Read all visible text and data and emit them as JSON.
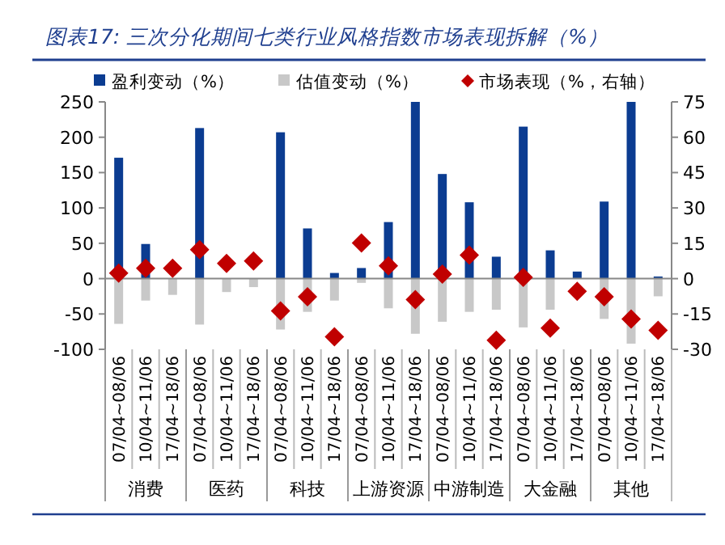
{
  "chart_data": {
    "type": "bar",
    "title": "图表17: 三次分化期间七类行业风格指数市场表现拆解（%）",
    "categories": [
      "07/04~08/06",
      "10/04~11/06",
      "17/04~18/06",
      "07/04~08/06",
      "10/04~11/06",
      "17/04~18/06",
      "07/04~08/06",
      "10/04~11/06",
      "17/04~18/06",
      "07/04~08/06",
      "10/04~11/06",
      "17/04~18/06",
      "07/04~08/06",
      "10/04~11/06",
      "17/04~18/06",
      "07/04~08/06",
      "10/04~11/06",
      "17/04~18/06",
      "07/04~08/06",
      "10/04~11/06",
      "17/04~18/06"
    ],
    "annotations": [
      "消费",
      "医药",
      "科技",
      "上游资源",
      "中游制造",
      "大金融",
      "其他"
    ],
    "stacked": true,
    "series": [
      {
        "name": "盈利变动（%）",
        "color": "#0b3c91",
        "values": [
          171,
          49,
          null,
          213,
          null,
          null,
          207,
          71,
          8,
          15,
          80,
          250,
          148,
          108,
          31,
          215,
          40,
          10,
          109,
          250,
          3
        ]
      },
      {
        "name": "估值变动（%）",
        "color": "#c8c8c8",
        "values": [
          -64,
          -31,
          -23,
          -65,
          -19,
          -12,
          -72,
          -47,
          -31,
          -6,
          -42,
          -78,
          -61,
          -47,
          -44,
          -69,
          -44,
          null,
          -57,
          -92,
          -25
        ]
      },
      {
        "name": "市场表现（%，右轴）",
        "type": "scatter",
        "axis": "y2",
        "marker": "diamond",
        "color": "#c00000",
        "values": [
          2.3,
          4.4,
          4.4,
          12.3,
          6.5,
          7.5,
          -13.7,
          -7.7,
          -24.7,
          15.1,
          5.4,
          -8.9,
          1.9,
          10.0,
          -26.1,
          0.5,
          -21.0,
          -5.4,
          -7.7,
          -17.1,
          -21.9
        ]
      }
    ],
    "ylim": [
      -100,
      250
    ],
    "yticks": [
      -100,
      -50,
      0,
      50,
      100,
      150,
      200,
      250
    ],
    "y2lim": [
      -30,
      75
    ],
    "y2ticks": [
      -30,
      -15,
      0,
      15,
      30,
      45,
      60,
      75
    ],
    "legend": "top"
  }
}
